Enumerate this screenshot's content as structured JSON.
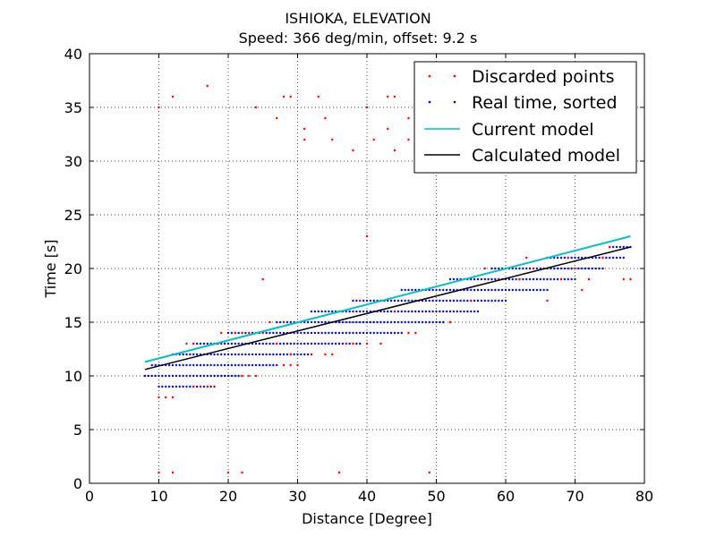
{
  "chart_data": {
    "type": "scatter",
    "title": "ISHIOKA, ELEVATION",
    "subtitle": "Speed: 366 deg/min, offset: 9.2 s",
    "xlabel": "Distance [Degree]",
    "ylabel": "Time [s]",
    "xlim": [
      0,
      80
    ],
    "ylim": [
      0,
      40
    ],
    "xticks": [
      0,
      10,
      20,
      30,
      40,
      50,
      60,
      70,
      80
    ],
    "yticks": [
      0,
      5,
      10,
      15,
      20,
      25,
      30,
      35,
      40
    ],
    "grid": true,
    "legend_position": "top-right",
    "colors": {
      "discarded": "#ff0000",
      "real_time": "#0000ff",
      "current_model": "#00bfbf",
      "calculated_model": "#000000"
    },
    "series": [
      {
        "name": "Discarded points",
        "kind": "points",
        "points": [
          [
            10,
            35
          ],
          [
            12,
            36
          ],
          [
            17,
            37
          ],
          [
            24,
            35
          ],
          [
            27,
            34
          ],
          [
            28,
            36
          ],
          [
            29,
            36
          ],
          [
            31,
            33
          ],
          [
            31,
            32
          ],
          [
            33,
            36
          ],
          [
            34,
            34
          ],
          [
            35,
            32
          ],
          [
            38,
            31
          ],
          [
            40,
            35
          ],
          [
            41,
            32
          ],
          [
            43,
            36
          ],
          [
            43,
            33
          ],
          [
            44,
            36
          ],
          [
            44,
            31
          ],
          [
            46,
            32
          ],
          [
            46,
            34
          ],
          [
            47,
            35
          ],
          [
            47,
            33
          ],
          [
            48,
            36
          ],
          [
            49,
            33
          ],
          [
            51,
            35
          ],
          [
            52,
            32
          ],
          [
            53,
            34
          ],
          [
            54,
            31
          ],
          [
            40,
            23
          ],
          [
            25,
            19
          ],
          [
            10,
            1
          ],
          [
            12,
            1
          ],
          [
            20,
            1
          ],
          [
            22,
            1
          ],
          [
            36,
            1
          ],
          [
            49,
            1
          ],
          [
            10,
            8
          ],
          [
            11,
            8
          ],
          [
            12,
            8
          ],
          [
            15,
            9
          ],
          [
            16,
            9
          ],
          [
            17,
            9
          ],
          [
            18,
            9
          ],
          [
            14,
            13
          ],
          [
            15,
            13
          ],
          [
            19,
            14
          ],
          [
            21,
            14
          ],
          [
            22,
            14
          ],
          [
            23,
            14
          ],
          [
            25,
            14
          ],
          [
            26,
            15
          ],
          [
            28,
            15
          ],
          [
            28,
            11
          ],
          [
            29,
            11
          ],
          [
            30,
            11
          ],
          [
            32,
            12
          ],
          [
            34,
            12
          ],
          [
            35,
            12
          ],
          [
            37,
            13
          ],
          [
            38,
            13
          ],
          [
            39,
            17
          ],
          [
            40,
            13
          ],
          [
            42,
            13
          ],
          [
            44,
            16
          ],
          [
            46,
            14
          ],
          [
            47,
            14
          ],
          [
            52,
            15
          ],
          [
            55,
            17
          ],
          [
            57,
            20
          ],
          [
            59,
            19
          ],
          [
            62,
            19
          ],
          [
            63,
            21
          ],
          [
            64,
            20
          ],
          [
            66,
            17
          ],
          [
            68,
            19
          ],
          [
            69,
            21
          ],
          [
            70,
            20
          ],
          [
            71,
            18
          ],
          [
            72,
            19
          ],
          [
            74,
            21
          ],
          [
            75,
            22
          ],
          [
            77,
            19
          ],
          [
            78,
            19
          ],
          [
            22,
            10
          ],
          [
            23,
            10
          ],
          [
            24,
            10
          ],
          [
            27,
            13
          ],
          [
            29,
            12
          ]
        ]
      },
      {
        "name": "Real time, sorted",
        "kind": "bands",
        "bands": [
          {
            "y": 9,
            "x": [
              10,
              18
            ]
          },
          {
            "y": 10,
            "x": [
              8,
              22
            ]
          },
          {
            "y": 11,
            "x": [
              9,
              27
            ]
          },
          {
            "y": 12,
            "x": [
              12,
              32
            ]
          },
          {
            "y": 13,
            "x": [
              15,
              39
            ]
          },
          {
            "y": 14,
            "x": [
              20,
              45
            ]
          },
          {
            "y": 15,
            "x": [
              27,
              51
            ]
          },
          {
            "y": 16,
            "x": [
              32,
              56
            ]
          },
          {
            "y": 17,
            "x": [
              38,
              60
            ]
          },
          {
            "y": 18,
            "x": [
              45,
              66
            ]
          },
          {
            "y": 19,
            "x": [
              52,
              70
            ]
          },
          {
            "y": 20,
            "x": [
              58,
              74
            ]
          },
          {
            "y": 21,
            "x": [
              66,
              77
            ]
          },
          {
            "y": 22,
            "x": [
              75,
              78
            ]
          }
        ],
        "step": 0.5
      },
      {
        "name": "Current model",
        "kind": "line",
        "points": [
          [
            8,
            11.3
          ],
          [
            78,
            23.0
          ]
        ]
      },
      {
        "name": "Calculated model",
        "kind": "line",
        "points": [
          [
            8,
            10.6
          ],
          [
            78,
            22.0
          ]
        ]
      }
    ]
  }
}
